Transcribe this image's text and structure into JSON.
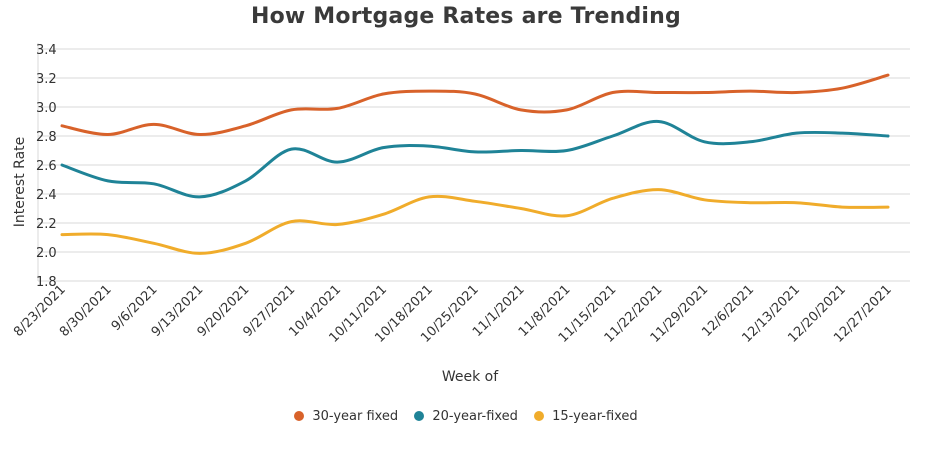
{
  "chart_data": {
    "type": "line",
    "title": "How Mortgage Rates are Trending",
    "xlabel": "Week of",
    "ylabel": "Interest Rate",
    "categories": [
      "8/23/2021",
      "8/30/2021",
      "9/6/2021",
      "9/13/2021",
      "9/20/2021",
      "9/27/2021",
      "10/4/2021",
      "10/11/2021",
      "10/18/2021",
      "10/25/2021",
      "11/1/2021",
      "11/8/2021",
      "11/15/2021",
      "11/22/2021",
      "11/29/2021",
      "12/6/2021",
      "12/13/2021",
      "12/20/2021",
      "12/27/2021"
    ],
    "yticks": [
      "1.8",
      "2.0",
      "2.2",
      "2.4",
      "2.6",
      "2.8",
      "3.0",
      "3.2",
      "3.4"
    ],
    "ylim": [
      1.8,
      3.4
    ],
    "grid": true,
    "legend_position": "bottom",
    "series": [
      {
        "name": "30-year fixed",
        "color": "#d8622a",
        "values": [
          2.87,
          2.81,
          2.88,
          2.81,
          2.87,
          2.98,
          2.99,
          3.09,
          3.11,
          3.09,
          2.98,
          2.98,
          3.1,
          3.1,
          3.1,
          3.11,
          3.1,
          3.13,
          3.22
        ]
      },
      {
        "name": "20-year-fixed",
        "color": "#1f8397",
        "values": [
          2.6,
          2.49,
          2.47,
          2.38,
          2.49,
          2.71,
          2.62,
          2.72,
          2.73,
          2.69,
          2.7,
          2.7,
          2.8,
          2.9,
          2.76,
          2.76,
          2.82,
          2.82,
          2.8
        ]
      },
      {
        "name": "15-year-fixed",
        "color": "#f0ac2b",
        "values": [
          2.12,
          2.12,
          2.06,
          1.99,
          2.06,
          2.21,
          2.19,
          2.26,
          2.38,
          2.35,
          2.3,
          2.25,
          2.37,
          2.43,
          2.36,
          2.34,
          2.34,
          2.31,
          2.31
        ]
      }
    ]
  }
}
